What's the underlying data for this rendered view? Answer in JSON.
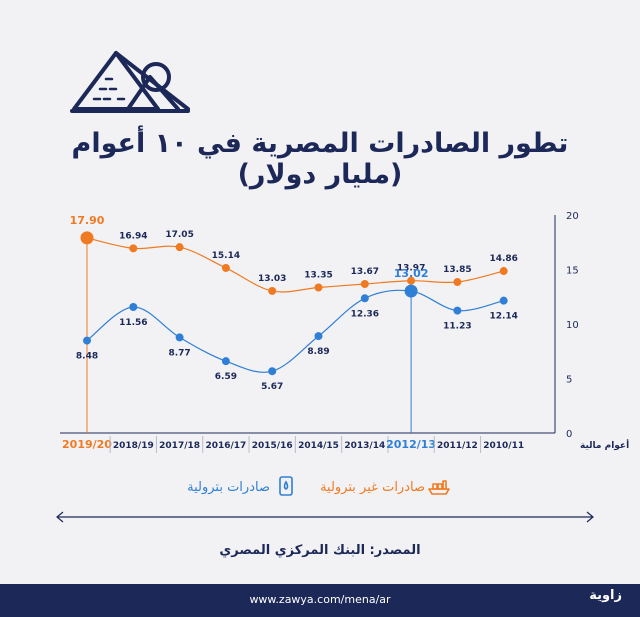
{
  "title": "تطور الصادرات المصرية في ١٠ أعوام (مليار دولار)",
  "source_label": "المصدر: البنك المركزي المصري",
  "footer": {
    "url": "www.zawya.com/mena/ar",
    "logo": "زاوية"
  },
  "colors": {
    "navy": "#1c2858",
    "orange": "#f07a22",
    "blue": "#2f7fd6",
    "background": "#f2f2f4"
  },
  "icons": {
    "pyramids": "pyramids-icon",
    "ship": "cargo-ship-icon",
    "oil": "oil-barrel-icon"
  },
  "chart_data": {
    "type": "line",
    "xlabel": "أعوام مالية",
    "categories": [
      "2019/20",
      "2018/19",
      "2017/18",
      "2016/17",
      "2015/16",
      "2014/15",
      "2013/14",
      "2012/13",
      "2011/12",
      "2010/11"
    ],
    "highlighted": [
      "2019/20",
      "2012/13"
    ],
    "series": [
      {
        "name": "صادرات غير بترولية",
        "color": "#f07a22",
        "values": [
          17.9,
          16.94,
          17.05,
          15.14,
          13.03,
          13.35,
          13.67,
          13.97,
          13.85,
          14.86
        ]
      },
      {
        "name": "صادرات بترولية",
        "color": "#2f7fd6",
        "values": [
          8.48,
          11.56,
          8.77,
          6.59,
          5.67,
          8.89,
          12.36,
          13.02,
          11.23,
          12.14
        ]
      }
    ],
    "y_ticks": [
      "0",
      "5",
      "10",
      "15",
      "20"
    ],
    "ylim": [
      0,
      20
    ],
    "y_axis_side": "right",
    "grid": false,
    "legend_placement": "bottom"
  }
}
